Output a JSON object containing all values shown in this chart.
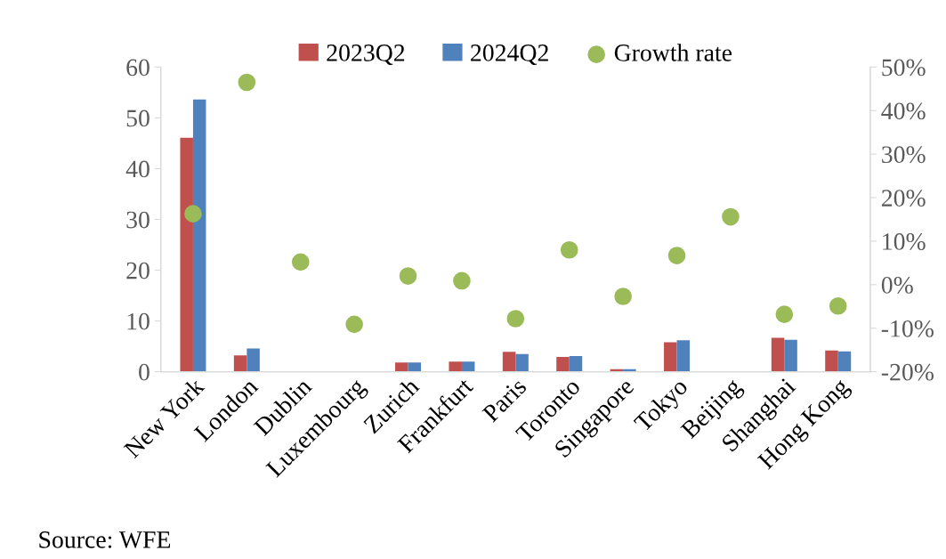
{
  "chart_data": {
    "type": "bar",
    "categories": [
      "New York",
      "London",
      "Dublin",
      "Luxembourg",
      "Zurich",
      "Frankfurt",
      "Paris",
      "Toronto",
      "Singapore",
      "Tokyo",
      "Beijing",
      "Shanghai",
      "Hong Kong"
    ],
    "series": [
      {
        "name": "2023Q2",
        "color": "#c0504d",
        "values": [
          46.1,
          3.2,
          null,
          0,
          1.8,
          2.0,
          3.9,
          2.9,
          0.5,
          5.8,
          0,
          6.7,
          4.2
        ]
      },
      {
        "name": "2024Q2",
        "color": "#4f81bd",
        "values": [
          53.6,
          4.6,
          null,
          0,
          1.8,
          2.0,
          3.5,
          3.1,
          0.5,
          6.2,
          0,
          6.3,
          4.0
        ]
      },
      {
        "name": "Growth rate",
        "type": "scatter",
        "axis": "y2",
        "color": "#9bbb59",
        "values": [
          16.3,
          46.5,
          5.2,
          -9.1,
          2.0,
          0.9,
          -7.8,
          8.0,
          -2.7,
          6.7,
          15.6,
          -6.8,
          -4.9
        ]
      }
    ],
    "ylim": [
      0,
      60
    ],
    "yticks": [
      0,
      10,
      20,
      30,
      40,
      50,
      60
    ],
    "y2lim": [
      -20,
      50
    ],
    "y2ticks": [
      {
        "value": -20,
        "label": "-20%"
      },
      {
        "value": -10,
        "label": "-10%"
      },
      {
        "value": 0,
        "label": "0%"
      },
      {
        "value": 10,
        "label": "10%"
      },
      {
        "value": 20,
        "label": "20%"
      },
      {
        "value": 30,
        "label": "30%"
      },
      {
        "value": 40,
        "label": "40%"
      },
      {
        "value": 50,
        "label": "50%"
      }
    ],
    "grid": false,
    "legend": "top",
    "marker": "circle",
    "annotations": [
      "Source: WFE"
    ]
  }
}
